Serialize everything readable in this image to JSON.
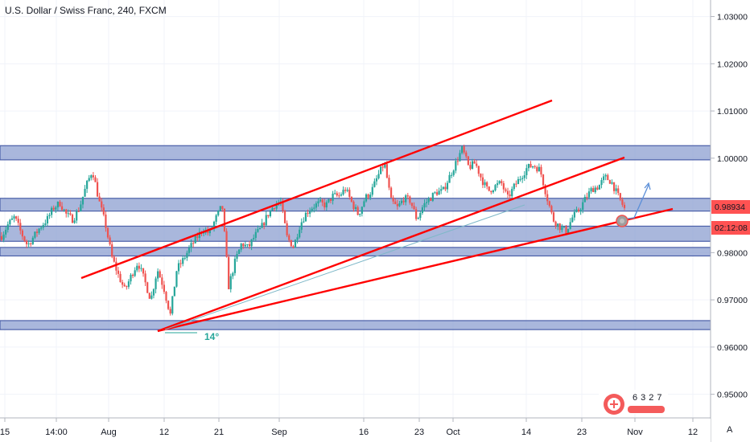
{
  "header": {
    "title": "U.S. Dollar / Swiss Franc, 240, FXCM"
  },
  "colors": {
    "up": "#26a69a",
    "down": "#ef5350",
    "line": "#ff0000",
    "zone": "#8c9fd0",
    "zone_edge": "#4a5fa8",
    "price_tag": "#ff5252"
  },
  "badge": {
    "icon": "tradingview-logo-icon",
    "digits": [
      "6",
      "3",
      "2",
      "7"
    ]
  },
  "chart_data": {
    "type": "candlestick",
    "title": "U.S. Dollar / Swiss Franc, 240, FXCM",
    "ylim": [
      0.945,
      1.0335
    ],
    "y_ticks": [
      "1.03000",
      "1.02000",
      "1.01000",
      "1.00000",
      "0.98000",
      "0.97000",
      "0.96000",
      "0.95000"
    ],
    "x_ticks": [
      "15",
      "14:00",
      "Aug",
      "12",
      "21",
      "Sep",
      "16",
      "23",
      "Oct",
      "14",
      "23",
      "Nov",
      "12"
    ],
    "price_label": "0.98934",
    "countdown_label": "02:12:08",
    "angle_label": "14°",
    "price_path": [
      0.9835,
      0.986,
      0.9875,
      0.9842,
      0.9815,
      0.9835,
      0.9855,
      0.987,
      0.9895,
      0.9905,
      0.988,
      0.987,
      0.9895,
      0.994,
      0.9975,
      0.991,
      0.986,
      0.979,
      0.9752,
      0.972,
      0.9752,
      0.978,
      0.9742,
      0.97,
      0.9765,
      0.9725,
      0.9668,
      0.9765,
      0.9785,
      0.981,
      0.983,
      0.985,
      0.984,
      0.9872,
      0.99,
      0.9728,
      0.9782,
      0.982,
      0.981,
      0.9835,
      0.9852,
      0.988,
      0.99,
      0.9908,
      0.9832,
      0.9812,
      0.986,
      0.9885,
      0.9898,
      0.9905,
      0.99,
      0.992,
      0.992,
      0.9935,
      0.9905,
      0.988,
      0.9915,
      0.993,
      0.9962,
      0.999,
      0.991,
      0.9895,
      0.9915,
      0.991,
      0.987,
      0.99,
      0.9915,
      0.9928,
      0.993,
      0.996,
      0.999,
      1.002,
      0.998,
      0.999,
      0.9955,
      0.993,
      0.994,
      0.9948,
      0.9915,
      0.994,
      0.996,
      0.998,
      0.9985,
      0.9975,
      0.992,
      0.987,
      0.9855,
      0.9845,
      0.9875,
      0.989,
      0.9915,
      0.9935,
      0.994,
      0.996,
      0.995,
      0.992,
      0.9893
    ]
  },
  "zones": [
    {
      "from": 0.99965,
      "to": 1.00265
    },
    {
      "from": 0.9888,
      "to": 0.9915
    },
    {
      "from": 0.9824,
      "to": 0.9856
    },
    {
      "from": 0.9793,
      "to": 0.9811
    },
    {
      "from": 0.9637,
      "to": 0.9656
    }
  ]
}
